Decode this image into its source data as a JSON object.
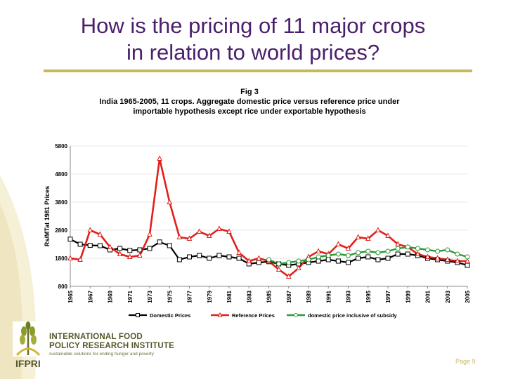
{
  "slide": {
    "title_line1": "How is the pricing of 11 major crops",
    "title_line2": "in relation to world prices?",
    "page": "Page 9"
  },
  "org": {
    "name_line1": "INTERNATIONAL FOOD",
    "name_line2": "POLICY RESEARCH INSTITUTE",
    "tagline": "sustainable solutions for ending hunger and poverty",
    "acronym": "IFPRI"
  },
  "colors": {
    "title": "#4a1f6b",
    "accent": "#c9b85a",
    "domestic": "#000000",
    "reference": "#e0201b",
    "subsidy": "#2e9a3a"
  },
  "chart_data": {
    "type": "line",
    "title": "Fig 3",
    "subtitle_line1": "India 1965-2005, 11 crops. Aggregate domestic price versus reference price under",
    "subtitle_line2": "importable hypothesis except rice under exportable hypothesis",
    "ylabel": "Rs/MTat 1981 Prices",
    "xlabel": "",
    "ylim": [
      800,
      5800
    ],
    "yticks": [
      "5800",
      "4800",
      "3800",
      "2800",
      "1800",
      "800"
    ],
    "ytick_values": [
      5800,
      4800,
      3800,
      2800,
      1800,
      800
    ],
    "xlim": [
      1965,
      2005
    ],
    "xticks": [
      "1965",
      "1967",
      "1969",
      "1971",
      "1973",
      "1975",
      "1977",
      "1979",
      "1981",
      "1983",
      "1985",
      "1987",
      "1989",
      "1991",
      "1993",
      "1995",
      "1997",
      "1999",
      "2001",
      "2003",
      "2005"
    ],
    "legend_position": "bottom",
    "series": [
      {
        "name": "Domestic Prices",
        "marker": "square",
        "x": [
          1965,
          1966,
          1967,
          1968,
          1969,
          1970,
          1971,
          1972,
          1973,
          1974,
          1975,
          1976,
          1977,
          1978,
          1979,
          1980,
          1981,
          1982,
          1983,
          1984,
          1985,
          1986,
          1987,
          1988,
          1989,
          1990,
          1991,
          1992,
          1993,
          1994,
          1995,
          1996,
          1997,
          1998,
          1999,
          2000,
          2001,
          2002,
          2003,
          2004,
          2005
        ],
        "y": [
          2480,
          2300,
          2260,
          2250,
          2100,
          2150,
          2080,
          2100,
          2150,
          2380,
          2250,
          1750,
          1850,
          1900,
          1800,
          1900,
          1850,
          1800,
          1600,
          1650,
          1680,
          1600,
          1550,
          1600,
          1650,
          1700,
          1750,
          1700,
          1650,
          1800,
          1850,
          1750,
          1800,
          1950,
          1950,
          1900,
          1800,
          1750,
          1700,
          1650,
          1550
        ]
      },
      {
        "name": "Reference Prices",
        "marker": "triangle",
        "x": [
          1965,
          1966,
          1967,
          1968,
          1969,
          1970,
          1971,
          1972,
          1973,
          1974,
          1975,
          1976,
          1977,
          1978,
          1979,
          1980,
          1981,
          1982,
          1983,
          1984,
          1985,
          1986,
          1987,
          1988,
          1989,
          1990,
          1991,
          1992,
          1993,
          1994,
          1995,
          1996,
          1997,
          1998,
          1999,
          2000,
          2001,
          2002,
          2003,
          2004,
          2005
        ],
        "y": [
          1800,
          1750,
          2800,
          2650,
          2200,
          1950,
          1850,
          1900,
          2650,
          5350,
          3800,
          2550,
          2500,
          2750,
          2600,
          2850,
          2750,
          2000,
          1700,
          1800,
          1700,
          1400,
          1150,
          1450,
          1850,
          2050,
          1950,
          2300,
          2150,
          2550,
          2500,
          2800,
          2600,
          2300,
          2200,
          1950,
          1850,
          1800,
          1750,
          1700,
          1700
        ]
      },
      {
        "name": "domestic price inclusive of subsidy",
        "marker": "circle",
        "x": [
          1985,
          1986,
          1987,
          1988,
          1989,
          1990,
          1991,
          1992,
          1993,
          1994,
          1995,
          1996,
          1997,
          1998,
          1999,
          2000,
          2001,
          2002,
          2003,
          2004,
          2005
        ],
        "y": [
          1750,
          1600,
          1650,
          1700,
          1750,
          1850,
          1900,
          1950,
          1900,
          2000,
          2050,
          2000,
          2050,
          2150,
          2200,
          2150,
          2100,
          2050,
          2100,
          1950,
          1850
        ]
      }
    ]
  }
}
